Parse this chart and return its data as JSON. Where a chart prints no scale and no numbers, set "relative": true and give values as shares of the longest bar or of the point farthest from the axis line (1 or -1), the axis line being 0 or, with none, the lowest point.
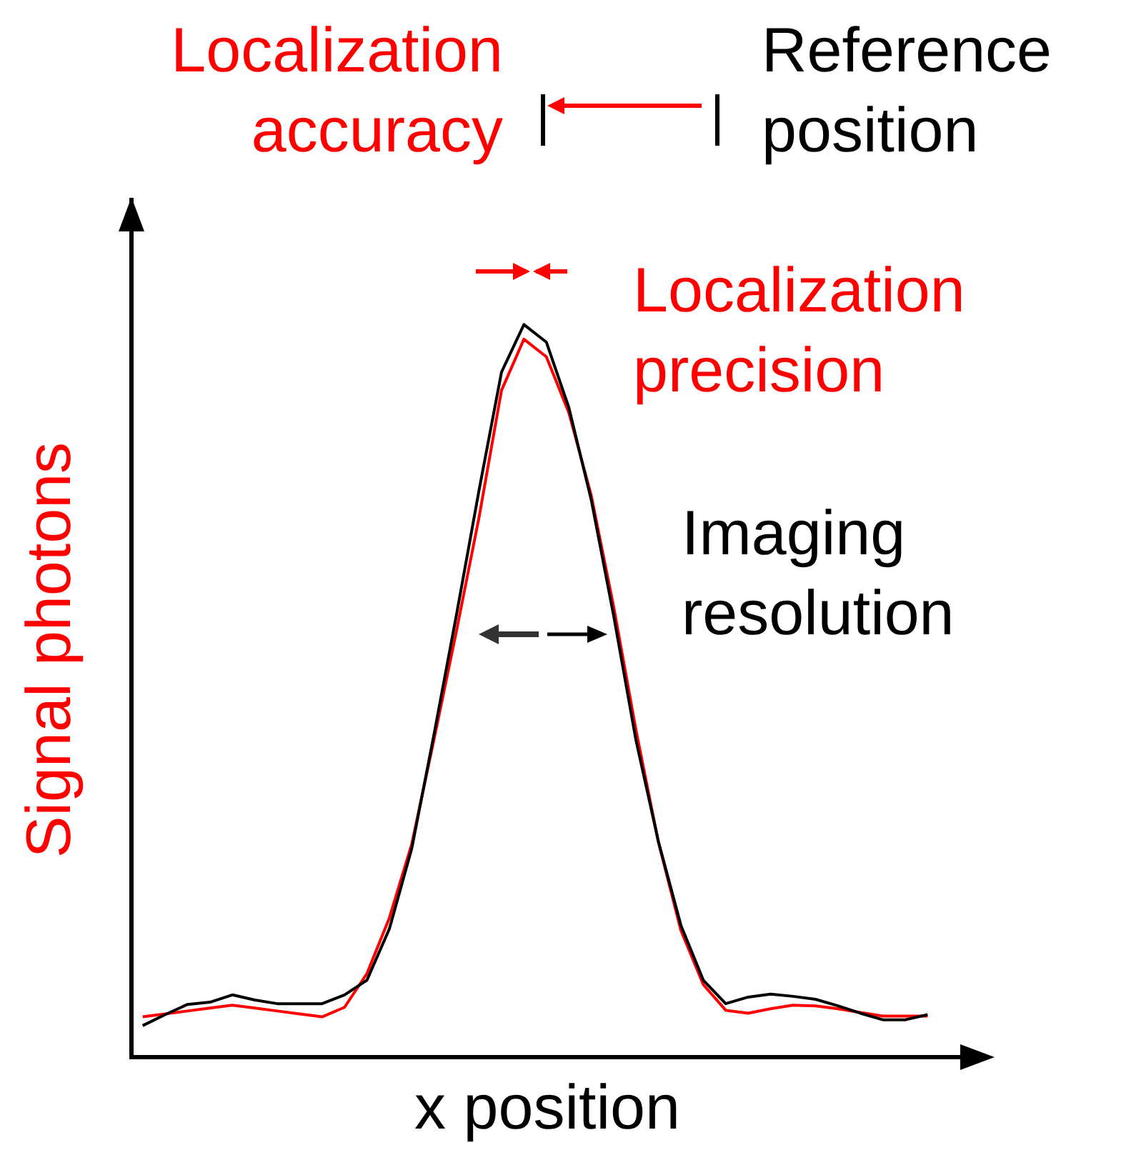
{
  "chart_data": {
    "type": "line",
    "relative": true,
    "xlabel": "x position",
    "ylabel": "Signal photons",
    "tick_labels": false,
    "grid": false,
    "legend": false,
    "marker": "none",
    "line_style": "solid",
    "annotations": [
      "Localization accuracy",
      "Reference position",
      "Localization precision",
      "Imaging resolution"
    ],
    "categories": [
      null,
      null,
      null,
      null,
      null,
      null,
      null,
      null,
      null,
      null,
      null,
      null,
      null,
      null,
      null,
      null,
      null,
      null,
      null,
      null,
      null,
      null,
      null,
      null,
      null,
      null,
      null,
      null,
      null,
      null,
      null,
      null,
      null,
      null,
      null,
      null
    ],
    "series": [
      {
        "color": "#000000",
        "values": [
          0.043,
          0.058,
          0.072,
          0.075,
          0.085,
          0.078,
          0.073,
          0.073,
          0.073,
          0.085,
          0.105,
          0.175,
          0.285,
          0.442,
          0.605,
          0.774,
          0.935,
          1,
          0.976,
          0.887,
          0.761,
          0.603,
          0.432,
          0.294,
          0.18,
          0.105,
          0.073,
          0.082,
          0.086,
          0.083,
          0.079,
          0.07,
          0.06,
          0.051,
          0.051,
          0.058
        ]
      },
      {
        "color": "#ff0000",
        "values": [
          0.055,
          0.059,
          0.063,
          0.067,
          0.071,
          0.067,
          0.063,
          0.059,
          0.055,
          0.068,
          0.114,
          0.19,
          0.291,
          0.435,
          0.583,
          0.737,
          0.91,
          0.98,
          0.956,
          0.88,
          0.767,
          0.615,
          0.446,
          0.293,
          0.173,
          0.099,
          0.064,
          0.06,
          0.066,
          0.071,
          0.07,
          0.066,
          0.061,
          0.056,
          0.056,
          0.056
        ]
      }
    ]
  }
}
